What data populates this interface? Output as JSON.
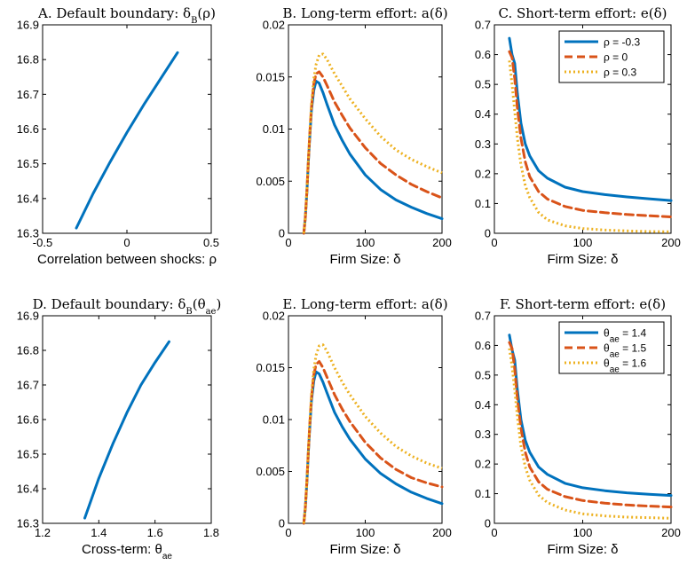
{
  "colors": {
    "blue": "#0072BD",
    "orange": "#D95319",
    "yellow": "#EDB120"
  },
  "chart_data": [
    {
      "type": "line",
      "title": "A. Default boundary: δB(ρ)",
      "xlabel": "Correlation between shocks: ρ",
      "ylabel": "",
      "xlim": [
        -0.5,
        0.5
      ],
      "ylim": [
        16.3,
        16.9
      ],
      "xticks": [
        -0.5,
        0,
        0.5
      ],
      "xtick_labels": [
        "-0.5",
        "0",
        "0.5"
      ],
      "yticks": [
        16.3,
        16.4,
        16.5,
        16.6,
        16.7,
        16.8,
        16.9
      ],
      "ytick_labels": [
        "16.3",
        "16.4",
        "16.5",
        "16.6",
        "16.7",
        "16.8",
        "16.9"
      ],
      "grid": false,
      "series": [
        {
          "color": "#0072BD",
          "style": "solid",
          "x": [
            -0.3,
            -0.2,
            -0.1,
            0,
            0.1,
            0.2,
            0.3
          ],
          "y": [
            16.315,
            16.415,
            16.505,
            16.59,
            16.67,
            16.745,
            16.82
          ]
        }
      ]
    },
    {
      "type": "line",
      "title": "B. Long-term effort: a(δ)",
      "xlabel": "Firm Size: δ",
      "ylabel": "",
      "xlim": [
        0,
        200
      ],
      "ylim": [
        0,
        0.02
      ],
      "xticks": [
        0,
        100,
        200
      ],
      "xtick_labels": [
        "0",
        "100",
        "200"
      ],
      "yticks": [
        0,
        0.005,
        0.01,
        0.015,
        0.02
      ],
      "ytick_labels": [
        "0",
        "0.005",
        "0.01",
        "0.015",
        "0.02"
      ],
      "grid": false,
      "series": [
        {
          "color": "#0072BD",
          "style": "solid",
          "x": [
            20,
            22,
            24,
            26,
            28,
            30,
            33,
            36,
            40,
            45,
            50,
            60,
            70,
            80,
            100,
            120,
            140,
            160,
            180,
            200
          ],
          "y": [
            0,
            0.0015,
            0.004,
            0.007,
            0.0095,
            0.0118,
            0.0137,
            0.0146,
            0.0144,
            0.0135,
            0.0124,
            0.0104,
            0.0089,
            0.0076,
            0.0056,
            0.0042,
            0.0032,
            0.0025,
            0.0019,
            0.0014
          ]
        },
        {
          "color": "#D95319",
          "style": "dashed",
          "x": [
            20,
            22,
            24,
            26,
            28,
            30,
            33,
            36,
            40,
            45,
            50,
            60,
            70,
            80,
            100,
            120,
            140,
            160,
            180,
            200
          ],
          "y": [
            0,
            0.0015,
            0.0041,
            0.0071,
            0.0098,
            0.0121,
            0.0143,
            0.0153,
            0.0155,
            0.015,
            0.0142,
            0.0126,
            0.0113,
            0.0101,
            0.0082,
            0.0067,
            0.0056,
            0.0047,
            0.004,
            0.0034
          ]
        },
        {
          "color": "#EDB120",
          "style": "dotted",
          "x": [
            20,
            22,
            24,
            26,
            28,
            30,
            33,
            36,
            40,
            45,
            50,
            60,
            70,
            80,
            100,
            120,
            140,
            160,
            180,
            200
          ],
          "y": [
            0,
            0.0016,
            0.0042,
            0.0072,
            0.01,
            0.0124,
            0.0148,
            0.0162,
            0.0171,
            0.0172,
            0.0167,
            0.0153,
            0.0141,
            0.0129,
            0.011,
            0.0093,
            0.008,
            0.0071,
            0.0064,
            0.0058
          ]
        }
      ]
    },
    {
      "type": "line",
      "title": "C. Short-term effort: e(δ)",
      "xlabel": "Firm Size: δ",
      "ylabel": "",
      "xlim": [
        0,
        200
      ],
      "ylim": [
        0,
        0.7
      ],
      "xticks": [
        0,
        100,
        200
      ],
      "xtick_labels": [
        "0",
        "100",
        "200"
      ],
      "yticks": [
        0,
        0.1,
        0.2,
        0.3,
        0.4,
        0.5,
        0.6,
        0.7
      ],
      "ytick_labels": [
        "0",
        "0.1",
        "0.2",
        "0.3",
        "0.4",
        "0.5",
        "0.6",
        "0.7"
      ],
      "grid": false,
      "legend_position": "top-right",
      "series": [
        {
          "name": "ρ = -0.3",
          "color": "#0072BD",
          "style": "solid",
          "x": [
            17,
            20,
            23,
            26,
            30,
            35,
            40,
            50,
            60,
            80,
            100,
            125,
            150,
            175,
            200
          ],
          "y": [
            0.655,
            0.6,
            0.57,
            0.47,
            0.37,
            0.3,
            0.26,
            0.21,
            0.185,
            0.155,
            0.14,
            0.13,
            0.122,
            0.116,
            0.11
          ]
        },
        {
          "name": "ρ = 0",
          "color": "#D95319",
          "style": "dashed",
          "x": [
            17,
            20,
            23,
            26,
            30,
            35,
            40,
            50,
            60,
            80,
            100,
            125,
            150,
            175,
            200
          ],
          "y": [
            0.61,
            0.59,
            0.52,
            0.42,
            0.32,
            0.24,
            0.19,
            0.14,
            0.115,
            0.09,
            0.077,
            0.069,
            0.063,
            0.059,
            0.055
          ]
        },
        {
          "name": "ρ = 0.3",
          "color": "#EDB120",
          "style": "dotted",
          "x": [
            17,
            20,
            23,
            26,
            30,
            35,
            40,
            50,
            60,
            80,
            100,
            125,
            150,
            175,
            200
          ],
          "y": [
            0.58,
            0.5,
            0.41,
            0.32,
            0.23,
            0.16,
            0.12,
            0.07,
            0.045,
            0.025,
            0.016,
            0.011,
            0.008,
            0.006,
            0.005
          ]
        }
      ]
    },
    {
      "type": "line",
      "title": "D. Default boundary: δB(θae)",
      "xlabel": "Cross-term: θae",
      "ylabel": "",
      "xlim": [
        1.2,
        1.8
      ],
      "ylim": [
        16.3,
        16.9
      ],
      "xticks": [
        1.2,
        1.4,
        1.6,
        1.8
      ],
      "xtick_labels": [
        "1.2",
        "1.4",
        "1.6",
        "1.8"
      ],
      "yticks": [
        16.3,
        16.4,
        16.5,
        16.6,
        16.7,
        16.8,
        16.9
      ],
      "ytick_labels": [
        "16.3",
        "16.4",
        "16.5",
        "16.6",
        "16.7",
        "16.8",
        "16.9"
      ],
      "grid": false,
      "series": [
        {
          "color": "#0072BD",
          "style": "solid",
          "x": [
            1.35,
            1.4,
            1.45,
            1.5,
            1.55,
            1.6,
            1.65
          ],
          "y": [
            16.315,
            16.43,
            16.53,
            16.62,
            16.7,
            16.765,
            16.825
          ]
        }
      ]
    },
    {
      "type": "line",
      "title": "E. Long-term effort: a(δ)",
      "xlabel": "Firm Size: δ",
      "ylabel": "",
      "xlim": [
        0,
        200
      ],
      "ylim": [
        0,
        0.02
      ],
      "xticks": [
        0,
        100,
        200
      ],
      "xtick_labels": [
        "0",
        "100",
        "200"
      ],
      "yticks": [
        0,
        0.005,
        0.01,
        0.015,
        0.02
      ],
      "ytick_labels": [
        "0",
        "0.005",
        "0.01",
        "0.015",
        "0.02"
      ],
      "grid": false,
      "series": [
        {
          "color": "#0072BD",
          "style": "solid",
          "x": [
            20,
            22,
            24,
            26,
            28,
            30,
            33,
            36,
            40,
            45,
            50,
            60,
            70,
            80,
            100,
            120,
            140,
            160,
            180,
            200
          ],
          "y": [
            0,
            0.0015,
            0.004,
            0.007,
            0.0095,
            0.0118,
            0.0137,
            0.0146,
            0.0144,
            0.0136,
            0.0126,
            0.0107,
            0.0093,
            0.0081,
            0.0062,
            0.0048,
            0.0038,
            0.003,
            0.0024,
            0.0019
          ]
        },
        {
          "color": "#D95319",
          "style": "dashed",
          "x": [
            20,
            22,
            24,
            26,
            28,
            30,
            33,
            36,
            40,
            45,
            50,
            60,
            70,
            80,
            100,
            120,
            140,
            160,
            180,
            200
          ],
          "y": [
            0,
            0.0015,
            0.0041,
            0.0071,
            0.0098,
            0.0121,
            0.0143,
            0.0153,
            0.0156,
            0.015,
            0.0141,
            0.0124,
            0.011,
            0.0098,
            0.0078,
            0.0063,
            0.0052,
            0.0044,
            0.0039,
            0.0035
          ]
        },
        {
          "color": "#EDB120",
          "style": "dotted",
          "x": [
            20,
            22,
            24,
            26,
            28,
            30,
            33,
            36,
            40,
            45,
            50,
            60,
            70,
            80,
            100,
            120,
            140,
            160,
            180,
            200
          ],
          "y": [
            0,
            0.0016,
            0.0042,
            0.0072,
            0.01,
            0.0124,
            0.0148,
            0.0162,
            0.0171,
            0.0172,
            0.0166,
            0.015,
            0.0136,
            0.0124,
            0.0103,
            0.0087,
            0.0074,
            0.0065,
            0.0058,
            0.0053
          ]
        }
      ]
    },
    {
      "type": "line",
      "title": "F. Short-term effort: e(δ)",
      "xlabel": "Firm Size: δ",
      "ylabel": "",
      "xlim": [
        0,
        200
      ],
      "ylim": [
        0,
        0.7
      ],
      "xticks": [
        0,
        100,
        200
      ],
      "xtick_labels": [
        "0",
        "100",
        "200"
      ],
      "yticks": [
        0,
        0.1,
        0.2,
        0.3,
        0.4,
        0.5,
        0.6,
        0.7
      ],
      "ytick_labels": [
        "0",
        "0.1",
        "0.2",
        "0.3",
        "0.4",
        "0.5",
        "0.6",
        "0.7"
      ],
      "grid": false,
      "legend_position": "top-right",
      "series": [
        {
          "name": "θae = 1.4",
          "color": "#0072BD",
          "style": "solid",
          "x": [
            17,
            20,
            23,
            26,
            30,
            35,
            40,
            50,
            60,
            80,
            100,
            125,
            150,
            175,
            200
          ],
          "y": [
            0.635,
            0.585,
            0.55,
            0.45,
            0.35,
            0.28,
            0.24,
            0.19,
            0.165,
            0.135,
            0.12,
            0.11,
            0.103,
            0.098,
            0.094
          ]
        },
        {
          "name": "θae = 1.5",
          "color": "#D95319",
          "style": "dashed",
          "x": [
            17,
            20,
            23,
            26,
            30,
            35,
            40,
            50,
            60,
            80,
            100,
            125,
            150,
            175,
            200
          ],
          "y": [
            0.61,
            0.59,
            0.52,
            0.42,
            0.32,
            0.24,
            0.19,
            0.14,
            0.115,
            0.09,
            0.077,
            0.068,
            0.062,
            0.058,
            0.055
          ]
        },
        {
          "name": "θae = 1.6",
          "color": "#EDB120",
          "style": "dotted",
          "x": [
            17,
            20,
            23,
            26,
            30,
            35,
            40,
            50,
            60,
            80,
            100,
            125,
            150,
            175,
            200
          ],
          "y": [
            0.59,
            0.53,
            0.45,
            0.36,
            0.26,
            0.19,
            0.145,
            0.095,
            0.07,
            0.045,
            0.032,
            0.025,
            0.021,
            0.019,
            0.017
          ]
        }
      ]
    }
  ]
}
